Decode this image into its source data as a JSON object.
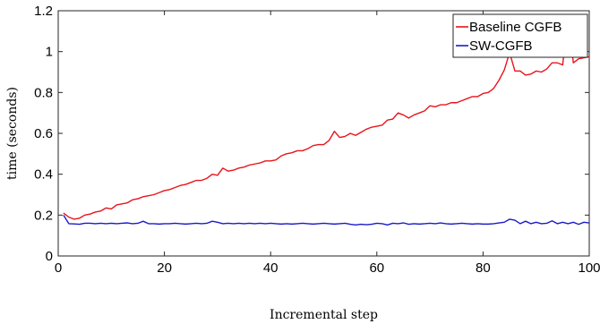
{
  "chart_data": {
    "type": "line",
    "title": "",
    "xlabel": "Incremental step",
    "ylabel": "time (seconds)",
    "xlim": [
      0,
      100
    ],
    "ylim": [
      0,
      1.2
    ],
    "xticks": [
      0,
      20,
      40,
      60,
      80,
      100
    ],
    "yticks": [
      0,
      0.2,
      0.4,
      0.6,
      0.8,
      1,
      1.2
    ],
    "xtick_labels": [
      "0",
      "20",
      "40",
      "60",
      "80",
      "100"
    ],
    "ytick_labels": [
      "0",
      "0.2",
      "0.4",
      "0.6",
      "0.8",
      "1",
      "1.2"
    ],
    "grid": false,
    "legend_position": "top-right",
    "x": [
      1,
      2,
      3,
      4,
      5,
      6,
      7,
      8,
      9,
      10,
      11,
      12,
      13,
      14,
      15,
      16,
      17,
      18,
      19,
      20,
      21,
      22,
      23,
      24,
      25,
      26,
      27,
      28,
      29,
      30,
      31,
      32,
      33,
      34,
      35,
      36,
      37,
      38,
      39,
      40,
      41,
      42,
      43,
      44,
      45,
      46,
      47,
      48,
      49,
      50,
      51,
      52,
      53,
      54,
      55,
      56,
      57,
      58,
      59,
      60,
      61,
      62,
      63,
      64,
      65,
      66,
      67,
      68,
      69,
      70,
      71,
      72,
      73,
      74,
      75,
      76,
      77,
      78,
      79,
      80,
      81,
      82,
      83,
      84,
      85,
      86,
      87,
      88,
      89,
      90,
      91,
      92,
      93,
      94,
      95,
      96,
      97,
      98,
      99,
      100
    ],
    "series": [
      {
        "name": "Baseline CGFB",
        "color": "#e8141b",
        "values": [
          0.21,
          0.19,
          0.18,
          0.185,
          0.2,
          0.205,
          0.215,
          0.22,
          0.235,
          0.23,
          0.25,
          0.255,
          0.26,
          0.275,
          0.28,
          0.29,
          0.295,
          0.3,
          0.31,
          0.32,
          0.325,
          0.335,
          0.345,
          0.35,
          0.36,
          0.37,
          0.37,
          0.38,
          0.4,
          0.395,
          0.43,
          0.415,
          0.42,
          0.43,
          0.435,
          0.445,
          0.45,
          0.455,
          0.465,
          0.465,
          0.47,
          0.49,
          0.5,
          0.505,
          0.515,
          0.515,
          0.525,
          0.54,
          0.545,
          0.545,
          0.565,
          0.61,
          0.58,
          0.585,
          0.6,
          0.59,
          0.605,
          0.62,
          0.63,
          0.635,
          0.64,
          0.665,
          0.67,
          0.7,
          0.69,
          0.675,
          0.69,
          0.7,
          0.71,
          0.735,
          0.73,
          0.74,
          0.74,
          0.75,
          0.75,
          0.76,
          0.77,
          0.78,
          0.78,
          0.795,
          0.8,
          0.82,
          0.86,
          0.91,
          0.995,
          0.905,
          0.905,
          0.885,
          0.89,
          0.905,
          0.9,
          0.915,
          0.945,
          0.945,
          0.935,
          1.18,
          0.945,
          0.965,
          0.97,
          0.975
        ]
      },
      {
        "name": "SW-CGFB",
        "color": "#1c1cc8",
        "values": [
          0.2,
          0.158,
          0.157,
          0.155,
          0.16,
          0.16,
          0.158,
          0.16,
          0.158,
          0.16,
          0.158,
          0.16,
          0.162,
          0.158,
          0.16,
          0.17,
          0.158,
          0.158,
          0.156,
          0.158,
          0.158,
          0.16,
          0.158,
          0.156,
          0.158,
          0.16,
          0.158,
          0.16,
          0.17,
          0.165,
          0.158,
          0.16,
          0.158,
          0.16,
          0.158,
          0.16,
          0.158,
          0.16,
          0.158,
          0.16,
          0.158,
          0.156,
          0.158,
          0.156,
          0.158,
          0.16,
          0.158,
          0.156,
          0.158,
          0.16,
          0.158,
          0.156,
          0.158,
          0.16,
          0.155,
          0.152,
          0.155,
          0.153,
          0.155,
          0.16,
          0.158,
          0.152,
          0.16,
          0.158,
          0.162,
          0.155,
          0.158,
          0.156,
          0.158,
          0.16,
          0.158,
          0.162,
          0.158,
          0.156,
          0.158,
          0.16,
          0.158,
          0.156,
          0.158,
          0.156,
          0.156,
          0.158,
          0.162,
          0.165,
          0.18,
          0.175,
          0.158,
          0.17,
          0.158,
          0.165,
          0.158,
          0.16,
          0.172,
          0.158,
          0.165,
          0.158,
          0.165,
          0.155,
          0.165,
          0.162
        ]
      }
    ]
  }
}
